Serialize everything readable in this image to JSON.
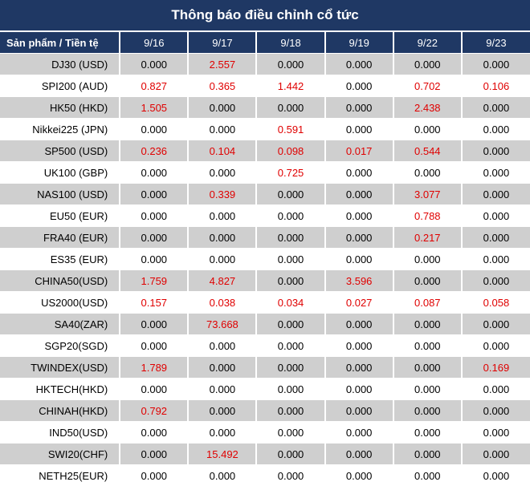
{
  "title": "Thông báo điều chỉnh cổ tức",
  "header": {
    "product_label": "Sản phẩm / Tiền tệ",
    "dates": [
      "9/16",
      "9/17",
      "9/18",
      "9/19",
      "9/22",
      "9/23"
    ]
  },
  "rows": [
    {
      "product": "DJ30 (USD)",
      "values": [
        "0.000",
        "2.557",
        "0.000",
        "0.000",
        "0.000",
        "0.000"
      ]
    },
    {
      "product": "SPI200 (AUD)",
      "values": [
        "0.827",
        "0.365",
        "1.442",
        "0.000",
        "0.702",
        "0.106"
      ]
    },
    {
      "product": "HK50 (HKD)",
      "values": [
        "1.505",
        "0.000",
        "0.000",
        "0.000",
        "2.438",
        "0.000"
      ]
    },
    {
      "product": "Nikkei225 (JPN)",
      "values": [
        "0.000",
        "0.000",
        "0.591",
        "0.000",
        "0.000",
        "0.000"
      ]
    },
    {
      "product": "SP500 (USD)",
      "values": [
        "0.236",
        "0.104",
        "0.098",
        "0.017",
        "0.544",
        "0.000"
      ]
    },
    {
      "product": "UK100 (GBP)",
      "values": [
        "0.000",
        "0.000",
        "0.725",
        "0.000",
        "0.000",
        "0.000"
      ]
    },
    {
      "product": "NAS100 (USD)",
      "values": [
        "0.000",
        "0.339",
        "0.000",
        "0.000",
        "3.077",
        "0.000"
      ]
    },
    {
      "product": "EU50 (EUR)",
      "values": [
        "0.000",
        "0.000",
        "0.000",
        "0.000",
        "0.788",
        "0.000"
      ]
    },
    {
      "product": "FRA40 (EUR)",
      "values": [
        "0.000",
        "0.000",
        "0.000",
        "0.000",
        "0.217",
        "0.000"
      ]
    },
    {
      "product": "ES35 (EUR)",
      "values": [
        "0.000",
        "0.000",
        "0.000",
        "0.000",
        "0.000",
        "0.000"
      ]
    },
    {
      "product": "CHINA50(USD)",
      "values": [
        "1.759",
        "4.827",
        "0.000",
        "3.596",
        "0.000",
        "0.000"
      ]
    },
    {
      "product": "US2000(USD)",
      "values": [
        "0.157",
        "0.038",
        "0.034",
        "0.027",
        "0.087",
        "0.058"
      ]
    },
    {
      "product": "SA40(ZAR)",
      "values": [
        "0.000",
        "73.668",
        "0.000",
        "0.000",
        "0.000",
        "0.000"
      ]
    },
    {
      "product": "SGP20(SGD)",
      "values": [
        "0.000",
        "0.000",
        "0.000",
        "0.000",
        "0.000",
        "0.000"
      ]
    },
    {
      "product": "TWINDEX(USD)",
      "values": [
        "1.789",
        "0.000",
        "0.000",
        "0.000",
        "0.000",
        "0.169"
      ]
    },
    {
      "product": "HKTECH(HKD)",
      "values": [
        "0.000",
        "0.000",
        "0.000",
        "0.000",
        "0.000",
        "0.000"
      ]
    },
    {
      "product": "CHINAH(HKD)",
      "values": [
        "0.792",
        "0.000",
        "0.000",
        "0.000",
        "0.000",
        "0.000"
      ]
    },
    {
      "product": "IND50(USD)",
      "values": [
        "0.000",
        "0.000",
        "0.000",
        "0.000",
        "0.000",
        "0.000"
      ]
    },
    {
      "product": "SWI20(CHF)",
      "values": [
        "0.000",
        "15.492",
        "0.000",
        "0.000",
        "0.000",
        "0.000"
      ]
    },
    {
      "product": "NETH25(EUR)",
      "values": [
        "0.000",
        "0.000",
        "0.000",
        "0.000",
        "0.000",
        "0.000"
      ]
    }
  ],
  "colors": {
    "header_bg": "#1f3864",
    "alt_row_bg": "#cfcfcf",
    "positive_value": "#e00000",
    "zero_value": "#000000"
  }
}
